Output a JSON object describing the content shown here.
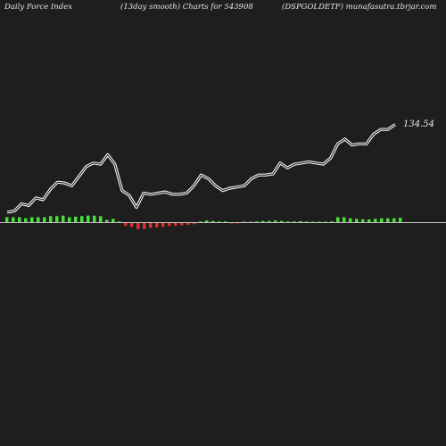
{
  "header": {
    "left": "Daily Force  Index",
    "middle": "(13day smooth) Charts for 543908",
    "right": "(DSPGOLDETF) munafasutra.tbrjar.com"
  },
  "colors": {
    "background": "#1e1e1e",
    "line": "#ffffff",
    "positive_bar": "#4ade3a",
    "negative_bar": "#e03030",
    "baseline": "#bcbcbc"
  },
  "chart_data": {
    "type": "line",
    "title": "",
    "xlabel": "",
    "ylabel": "",
    "last_value_label": "134.54",
    "series": [
      {
        "values": [
          98.0,
          98.5,
          101.5,
          100.8,
          104.0,
          103.2,
          107.5,
          110.5,
          110.2,
          109.0,
          113.0,
          117.0,
          118.5,
          118.0,
          122.0,
          118.0,
          107.0,
          105.0,
          100.0,
          106.0,
          105.5,
          106.0,
          106.5,
          105.5,
          105.5,
          106.0,
          109.0,
          113.5,
          112.0,
          109.0,
          107.0,
          108.0,
          108.5,
          109.0,
          112.0,
          113.5,
          113.5,
          114.0,
          118.5,
          116.5,
          118.0,
          118.5,
          119.0,
          118.5,
          118.0,
          120.5,
          126.5,
          128.5,
          126.0,
          126.5,
          126.5,
          130.5,
          132.5,
          132.5,
          134.54
        ]
      }
    ],
    "force_bars": [
      1,
      1,
      1,
      0.8,
      1,
      1,
      1,
      1.2,
      1.2,
      1.3,
      1,
      1.1,
      1.2,
      1.3,
      1.3,
      1.2,
      0.5,
      0.7,
      0.2,
      -0.6,
      -0.8,
      -1.2,
      -1.2,
      -1.0,
      -0.9,
      -0.8,
      -0.6,
      -0.6,
      -0.5,
      -0.4,
      -0.3,
      0.2,
      0.4,
      0.3,
      0.2,
      0.2,
      -0.1,
      -0.1,
      0.1,
      0.15,
      0.2,
      0.3,
      0.3,
      0.4,
      0.3,
      0.2,
      0.2,
      0.25,
      0.2,
      0.15,
      0.1,
      0.1,
      0.2,
      1.0,
      1.0,
      0.8,
      0.7,
      0.6,
      0.6,
      0.7,
      0.8,
      0.8,
      0.8,
      0.9
    ]
  }
}
